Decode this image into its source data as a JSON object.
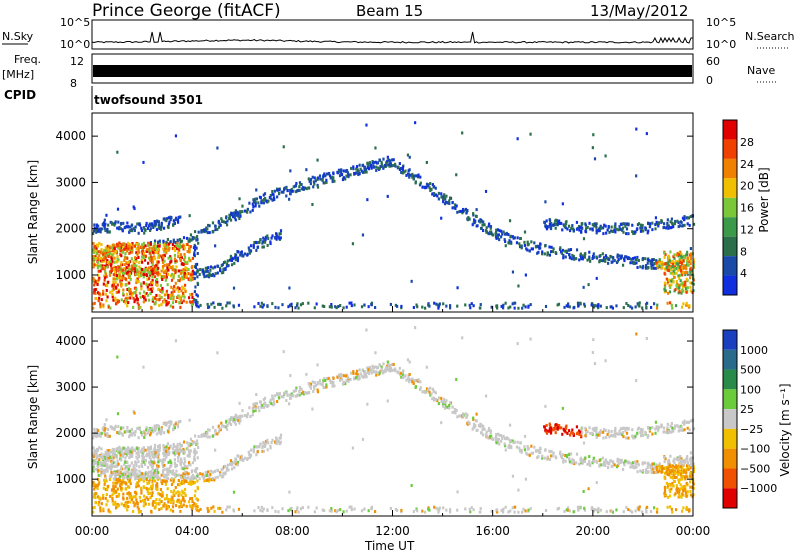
{
  "header": {
    "station": "Prince George (fitACF)",
    "beam": "Beam 15",
    "date": "13/May/2012"
  },
  "strip_labels": {
    "nsky": "N.Sky",
    "freq_top": "Freq.",
    "freq_unit": "[MHz]",
    "cpid": "CPID",
    "nsearch": "N.Search",
    "nave": "Nave",
    "cpid_name": "twofsound 3501"
  },
  "strip_axes": {
    "noise_ticks": [
      "10^5",
      "10^0"
    ],
    "freq_ticks": [
      "12",
      "8"
    ],
    "nave_ticks": [
      "60",
      "0"
    ]
  },
  "colors": {
    "power_scale": [
      "#1030e0",
      "#1a4aa8",
      "#2a6e4a",
      "#3a9a4a",
      "#7ac83a",
      "#f0c000",
      "#f08000",
      "#f04000",
      "#e00000"
    ],
    "velocity_scale": [
      "#e00000",
      "#f05000",
      "#f09000",
      "#f0c000",
      "#c8c8c8",
      "#6acc3a",
      "#2a8a4a",
      "#2a6a8a",
      "#1a40c0"
    ]
  },
  "chart_data": [
    {
      "type": "heatmap",
      "name": "power",
      "ylabel": "Slant Range [km]",
      "ylim": [
        200,
        4500
      ],
      "yticks": [
        1000,
        2000,
        3000,
        4000
      ],
      "xlim": [
        0,
        24
      ],
      "xticks": [
        "00:00",
        "04:00",
        "08:00",
        "12:00",
        "16:00",
        "20:00",
        "00:00"
      ],
      "colorbar": {
        "label": "Power [dB]",
        "ticks": [
          "28",
          "24",
          "20",
          "16",
          "12",
          "8",
          "4"
        ],
        "range": [
          0,
          30
        ]
      }
    },
    {
      "type": "heatmap",
      "name": "velocity",
      "ylabel": "Slant Range [km]",
      "ylim": [
        200,
        4500
      ],
      "yticks": [
        1000,
        2000,
        3000,
        4000
      ],
      "xlim": [
        0,
        24
      ],
      "xticks": [
        "00:00",
        "04:00",
        "08:00",
        "12:00",
        "16:00",
        "20:00",
        "00:00"
      ],
      "xlabel": "Time UT",
      "colorbar": {
        "label": "Velocity [m s⁻¹]",
        "ticks": [
          "1000",
          "500",
          "100",
          "25",
          "−25",
          "−100",
          "−500",
          "−1000"
        ]
      }
    }
  ],
  "scatter_features": [
    {
      "name": "arc",
      "points": [
        [
          0,
          1500
        ],
        [
          2,
          1600
        ],
        [
          3.5,
          1700
        ],
        [
          5,
          2100
        ],
        [
          7,
          2700
        ],
        [
          9,
          3050
        ],
        [
          10.5,
          3250
        ],
        [
          11.8,
          3450
        ],
        [
          13,
          3050
        ],
        [
          14.5,
          2450
        ],
        [
          16,
          1900
        ],
        [
          17.5,
          1600
        ],
        [
          19,
          1450
        ],
        [
          20.5,
          1350
        ],
        [
          22,
          1250
        ],
        [
          24,
          1200
        ]
      ]
    },
    {
      "name": "lower-arc",
      "points": [
        [
          0,
          1250
        ],
        [
          2,
          1050
        ],
        [
          4,
          1000
        ],
        [
          5,
          1100
        ],
        [
          6,
          1500
        ],
        [
          7.5,
          1900
        ]
      ]
    },
    {
      "name": "upper-early",
      "points": [
        [
          0,
          2000
        ],
        [
          1,
          2050
        ],
        [
          2,
          2000
        ],
        [
          3.5,
          2200
        ]
      ]
    },
    {
      "name": "late-band",
      "points": [
        [
          18,
          2100
        ],
        [
          19,
          2050
        ],
        [
          20,
          2000
        ],
        [
          21,
          2000
        ],
        [
          22,
          2000
        ],
        [
          23,
          2100
        ],
        [
          24,
          2200
        ]
      ]
    }
  ]
}
